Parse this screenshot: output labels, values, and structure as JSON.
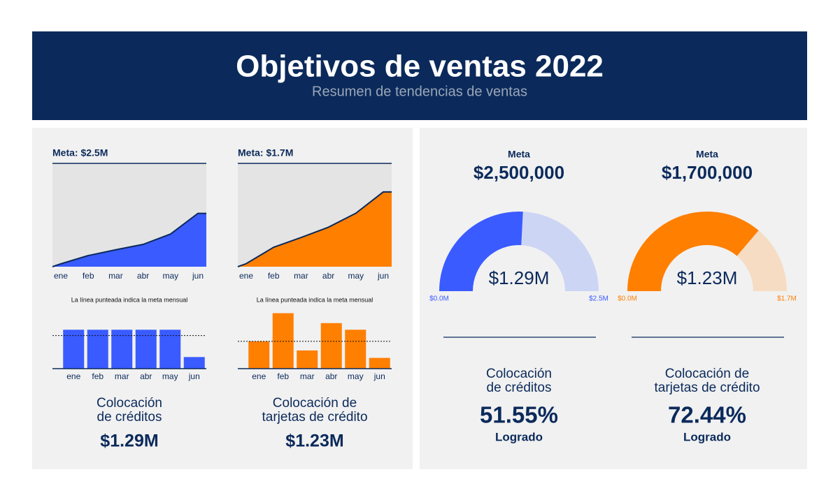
{
  "title": "Objetivos de ventas 2022",
  "subtitle": "Resumen de tendencias de ventas",
  "summaries": [
    {
      "caption": [
        "Colocación",
        "de créditos"
      ],
      "total": "$1.29M"
    },
    {
      "caption": [
        "Colocación de",
        "tarjetas de crédito"
      ],
      "total": "$1.23M"
    }
  ],
  "chart_data": [
    {
      "type": "area",
      "title": "Meta: $2.5M",
      "categories": [
        "ene",
        "feb",
        "mar",
        "abr",
        "may",
        "jun"
      ],
      "values": [
        0.07,
        0.27,
        0.41,
        0.54,
        0.79,
        1.29
      ],
      "ylim": [
        0,
        2.5
      ],
      "color": "#3a5bff"
    },
    {
      "type": "area",
      "title": "Meta: $1.7M",
      "categories": [
        "ene",
        "feb",
        "mar",
        "abr",
        "may",
        "jun"
      ],
      "values": [
        0.05,
        0.32,
        0.48,
        0.65,
        0.88,
        1.23
      ],
      "ylim": [
        0,
        1.7
      ],
      "color": "#ff7f00"
    },
    {
      "type": "bar",
      "note": "La línea punteada indica la meta mensual",
      "categories": [
        "ene",
        "feb",
        "mar",
        "abr",
        "may",
        "jun"
      ],
      "values": [
        0.47,
        0.47,
        0.47,
        0.47,
        0.47,
        0.14
      ],
      "target": 0.4,
      "ylim": [
        0,
        0.7
      ],
      "color": "#3a5bff"
    },
    {
      "type": "bar",
      "note": "La línea punteada indica la meta mensual",
      "categories": [
        "ene",
        "feb",
        "mar",
        "abr",
        "may",
        "jun"
      ],
      "values": [
        0.33,
        0.67,
        0.22,
        0.55,
        0.47,
        0.13
      ],
      "target": 0.33,
      "ylim": [
        0,
        0.7
      ],
      "color": "#ff7f00"
    },
    {
      "type": "gauge",
      "title": "Meta",
      "goal": {
        "value": 2500000,
        "label": "$2,500,000"
      },
      "value": 1.29,
      "value_label": "$1.29M",
      "ylim": [
        0,
        2.5
      ],
      "yticks": [
        {
          "value": 0,
          "label": "$0.0M"
        },
        {
          "value": 2.5,
          "label": "$2.5M"
        }
      ],
      "color": "#3a5bff",
      "track_color": "#cdd5f5",
      "caption": [
        "Colocación",
        "de créditos"
      ],
      "percent": {
        "value": 51.55,
        "label": "51.55%"
      },
      "percent_caption": "Logrado"
    },
    {
      "type": "gauge",
      "title": "Meta",
      "goal": {
        "value": 1700000,
        "label": "$1,700,000"
      },
      "value": 1.23,
      "value_label": "$1.23M",
      "ylim": [
        0,
        1.7
      ],
      "yticks": [
        {
          "value": 0,
          "label": "$0.0M"
        },
        {
          "value": 1.7,
          "label": "$1.7M"
        }
      ],
      "color": "#ff7f00",
      "track_color": "#f5dcc3",
      "caption": [
        "Colocación de",
        "tarjetas de crédito"
      ],
      "percent": {
        "value": 72.44,
        "label": "72.44%"
      },
      "percent_caption": "Logrado"
    }
  ]
}
